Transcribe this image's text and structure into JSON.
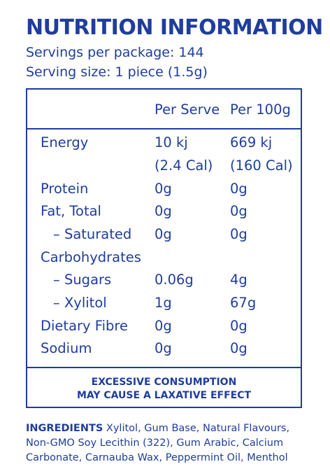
{
  "title": "NUTRITION INFORMATION",
  "servings_per_package": "Servings per package: 144",
  "serving_size": "Serving size: 1 piece (1.5g)",
  "table": {
    "col_serve": "Per Serve",
    "col_100g": "Per 100g",
    "rows": [
      {
        "label": "Energy",
        "serve": "10 kj",
        "per100": "669 kj"
      },
      {
        "label": "",
        "serve": "(2.4 Cal)",
        "per100": "(160 Cal)"
      },
      {
        "label": "Protein",
        "serve": "0g",
        "per100": "0g"
      },
      {
        "label": "Fat, Total",
        "serve": "0g",
        "per100": "0g"
      },
      {
        "label": "– Saturated",
        "serve": "0g",
        "per100": "0g"
      },
      {
        "label": "Carbohydrates",
        "serve": "",
        "per100": ""
      },
      {
        "label": "– Sugars",
        "serve": "0.06g",
        "per100": "4g"
      },
      {
        "label": "– Xylitol",
        "serve": "1g",
        "per100": "67g"
      },
      {
        "label": "Dietary Fibre",
        "serve": "0g",
        "per100": "0g"
      },
      {
        "label": "Sodium",
        "serve": "0g",
        "per100": "0g"
      }
    ]
  },
  "warning": {
    "line1": "EXCESSIVE CONSUMPTION",
    "line2": "MAY CAUSE A LAXATIVE EFFECT"
  },
  "ingredients": {
    "heading": "INGREDIENTS",
    "line1": " Xylitol, Gum Base, Natural Flavours,",
    "line2": "Non-GMO Soy Lecithin (322), Gum Arabic, Calcium",
    "line3": "Carbonate, Carnauba Wax, Peppermint Oil, Menthol"
  },
  "colors": {
    "text": "#1f3d9c",
    "background": "#ffffff"
  }
}
